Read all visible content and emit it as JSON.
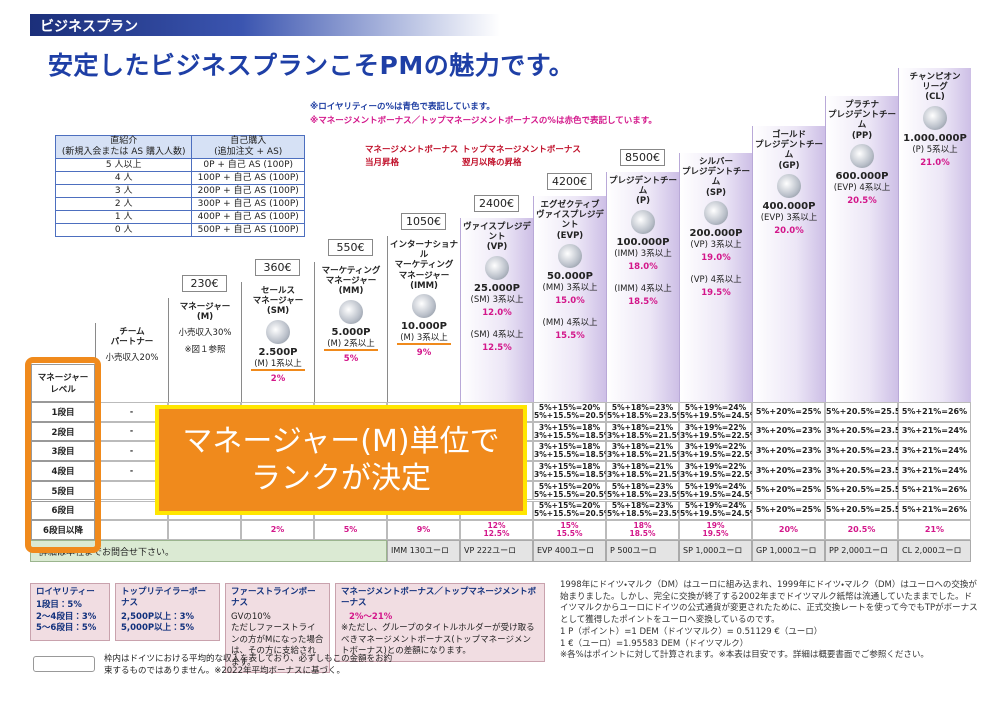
{
  "header": {
    "label": "ビジネスプラン",
    "title": "安定したビジネスプランこそPMの魅力です。"
  },
  "notes": [
    "※ロイヤリティーの%は青色で表記しています。",
    "※マネージメントボーナス／トップマネージメントボーナスの%は赤色で表記しています。"
  ],
  "bonus_labels": [
    {
      "name": "マネージメントボーナス",
      "sub": "当月昇格"
    },
    {
      "name": "トップマネージメントボーナス",
      "sub": "翌月以降の昇格"
    }
  ],
  "requirement_table": {
    "headers": [
      [
        "直紹介",
        "(新規入会または AS 購入人数)"
      ],
      [
        "自己購入",
        "(追加注文 + AS)"
      ]
    ],
    "rows": [
      [
        "5 人以上",
        "0P + 自己 AS (100P)"
      ],
      [
        "4 人",
        "100P + 自己 AS (100P)"
      ],
      [
        "3 人",
        "200P + 自己 AS (100P)"
      ],
      [
        "2 人",
        "300P + 自己 AS (100P)"
      ],
      [
        "1 人",
        "400P + 自己 AS (100P)"
      ],
      [
        "0 人",
        "500P + 自己 AS (100P)"
      ]
    ]
  },
  "ranks": [
    {
      "name": [
        "チーム",
        "パートナー"
      ],
      "income": "小売収入20%",
      "levels": [
        "-",
        "-",
        "-",
        "-",
        null,
        null,
        null
      ]
    },
    {
      "price": "230€",
      "name": [
        "マネージャー",
        "(M)"
      ],
      "income": "小売収入30%",
      "note": "※図１参照",
      "levels": [
        null,
        null,
        null,
        null,
        null,
        null,
        null
      ]
    },
    {
      "price": "360€",
      "name": [
        "セールス",
        "マネージャー",
        "(SM)"
      ],
      "points": "2.500P",
      "requirements": [
        {
          "req": "(M) 1系以上",
          "pct": "2%"
        }
      ],
      "levels": [
        null,
        null,
        null,
        null,
        null,
        null,
        "2%"
      ]
    },
    {
      "price": "550€",
      "name": [
        "マーケティング",
        "マネージャー",
        "(MM)"
      ],
      "points": "5.000P",
      "requirements": [
        {
          "req": "(M) 2系以上",
          "pct": "5%"
        }
      ],
      "levels": [
        null,
        null,
        null,
        null,
        null,
        null,
        "5%"
      ]
    },
    {
      "price": "1050€",
      "name": [
        "インターナショナル",
        "マーケティング",
        "マネージャー",
        "(IMM)"
      ],
      "points": "10.000P",
      "requirements": [
        {
          "req": "(M) 3系以上",
          "pct": "9%"
        }
      ],
      "levels": [
        null,
        null,
        null,
        null,
        null,
        null,
        "9%"
      ]
    },
    {
      "price": "2400€",
      "name": [
        "ヴァイスプレジデント",
        "(VP)"
      ],
      "points": "25.000P",
      "requirements": [
        {
          "req": "(SM) 3系以上",
          "pct": "12.0%"
        },
        {
          "req": "(SM) 4系以上",
          "pct": "12.5%"
        }
      ],
      "levels": [
        null,
        null,
        null,
        null,
        null,
        null,
        [
          "12%",
          "12.5%"
        ]
      ]
    },
    {
      "price": "4200€",
      "name": [
        "エグゼクティブ",
        "ヴァイスプレジデント",
        "(EVP)"
      ],
      "points": "50.000P",
      "requirements": [
        {
          "req": "(MM) 3系以上",
          "pct": "15.0%"
        },
        {
          "req": "(MM) 4系以上",
          "pct": "15.5%"
        }
      ],
      "levels": [
        [
          "5%+15%=20%",
          "5%+15.5%=20.5%"
        ],
        [
          "3%+15%=18%",
          "3%+15.5%=18.5%"
        ],
        [
          "3%+15%=18%",
          "3%+15.5%=18.5%"
        ],
        [
          "3%+15%=18%",
          "3%+15.5%=18.5%"
        ],
        [
          "5%+15%=20%",
          "5%+15.5%=20.5%"
        ],
        [
          "5%+15%=20%",
          "5%+15.5%=20.5%"
        ],
        [
          "15%",
          "15.5%"
        ]
      ]
    },
    {
      "price": "8500€",
      "name": [
        "プレジデントチーム",
        "(P)"
      ],
      "points": "100.000P",
      "requirements": [
        {
          "req": "(IMM) 3系以上",
          "pct": "18.0%"
        },
        {
          "req": "(IMM) 4系以上",
          "pct": "18.5%"
        }
      ],
      "levels": [
        [
          "5%+18%=23%",
          "5%+18.5%=23.5%"
        ],
        [
          "3%+18%=21%",
          "3%+18.5%=21.5%"
        ],
        [
          "3%+18%=21%",
          "3%+18.5%=21.5%"
        ],
        [
          "3%+18%=21%",
          "3%+18.5%=21.5%"
        ],
        [
          "5%+18%=23%",
          "5%+18.5%=23.5%"
        ],
        [
          "5%+18%=23%",
          "5%+18.5%=23.5%"
        ],
        [
          "18%",
          "18.5%"
        ]
      ]
    },
    {
      "name": [
        "シルバー",
        "プレジデントチーム",
        "(SP)"
      ],
      "points": "200.000P",
      "requirements": [
        {
          "req": "(VP) 3系以上",
          "pct": "19.0%"
        },
        {
          "req": "(VP) 4系以上",
          "pct": "19.5%"
        }
      ],
      "levels": [
        [
          "5%+19%=24%",
          "5%+19.5%=24.5%"
        ],
        [
          "3%+19%=22%",
          "3%+19.5%=22.5%"
        ],
        [
          "3%+19%=22%",
          "3%+19.5%=22.5%"
        ],
        [
          "3%+19%=22%",
          "3%+19.5%=22.5%"
        ],
        [
          "5%+19%=24%",
          "5%+19.5%=24.5%"
        ],
        [
          "5%+19%=24%",
          "5%+19.5%=24.5%"
        ],
        [
          "19%",
          "19.5%"
        ]
      ]
    },
    {
      "name": [
        "ゴールド",
        "プレジデントチーム",
        "(GP)"
      ],
      "points": "400.000P",
      "requirements": [
        {
          "req": "(EVP) 3系以上",
          "pct": "20.0%"
        }
      ],
      "levels": [
        "5%+20%=25%",
        "3%+20%=23%",
        "3%+20%=23%",
        "3%+20%=23%",
        "5%+20%=25%",
        "5%+20%=25%",
        "20%"
      ]
    },
    {
      "name": [
        "プラチナ",
        "プレジデントチーム",
        "(PP)"
      ],
      "points": "600.000P",
      "requirements": [
        {
          "req": "(EVP) 4系以上",
          "pct": "20.5%"
        }
      ],
      "levels": [
        "5%+20.5%=25.5%",
        "3%+20.5%=23.5%",
        "3%+20.5%=23.5%",
        "3%+20.5%=23.5%",
        "5%+20.5%=25.5%",
        "5%+20.5%=25.5%",
        "20.5%"
      ]
    },
    {
      "name": [
        "チャンピオン",
        "リーグ",
        "(CL)"
      ],
      "points": "1.000.000P",
      "requirements": [
        {
          "req": "(P) 5系以上",
          "pct": "21.0%"
        }
      ],
      "levels": [
        "5%+21%=26%",
        "3%+21%=24%",
        "3%+21%=24%",
        "3%+21%=24%",
        "5%+21%=26%",
        "5%+21%=26%",
        "21%"
      ]
    }
  ],
  "level_header": [
    "マネージャー",
    "レベル"
  ],
  "level_rows": [
    "1段目",
    "2段目",
    "3段目",
    "4段目",
    "5段目",
    "6段目",
    "6段目以降"
  ],
  "overlay": [
    "マネージャー(M)単位で",
    "ランクが決定"
  ],
  "contact": "詳細は本社までお問合せ下さい。",
  "conversions": [
    "IMM 130ユーロ",
    "VP 222ユーロ",
    "EVP 400ユーロ",
    "P 500ユーロ",
    "SP 1,000ユーロ",
    "GP 1,000ユーロ",
    "PP 2,000ユーロ",
    "CL 2,000ユーロ"
  ],
  "bonus_boxes": [
    {
      "title": "ロイヤリティー",
      "lines": [
        "1段目：5%",
        "2～4段目：3%",
        "5～6段目：5%"
      ]
    },
    {
      "title": "トップリテイラーボーナス",
      "lines": [
        "2,500P以上：3%",
        "5,000P以上：5%"
      ]
    },
    {
      "title": "ファーストラインボーナス",
      "lines": [
        "GVの10%",
        "ただしファーストラインの方がMになった場合は、その方に支給されます。"
      ]
    },
    {
      "title": "マネージメントボーナス／トップマネージメントボーナス",
      "lines": [
        "2%～21%",
        "※ただし、グループのタイトルホルダーが受け取るべきマネージメントボーナス(トップマネージメントボーナス)との差額になります。"
      ]
    }
  ],
  "currency_note": [
    "1998年にドイツ・マルク（DM）はユーロに組み込まれ、1999年にドイツ・マルク（DM）はユーロへの交換が始まりました。しかし、完全に交換が終了する2002年までドイツマルク紙幣は流通していたままでした。ドイツマルクからユーロにドイツの公式通貨が変更されたために、正式交換レートを使って今でもTPがボーナスとして獲得したポイントをユーロへ変換しているのです。",
    "1 P（ポイント）=1 DEM（ドイツマルク）= 0.51129 €（ユーロ）",
    "1 €（ユーロ）=1.95583 DEM（ドイツマルク）",
    "※各%はポイントに対して計算されます。※本表は目安です。詳細は概要書面でご参照ください。"
  ],
  "footnote": "枠内はドイツにおける平均的な収入を表しており、必ずしもこの金額をお約束するものではありません。※2022年平均ボーナスに基づく。"
}
